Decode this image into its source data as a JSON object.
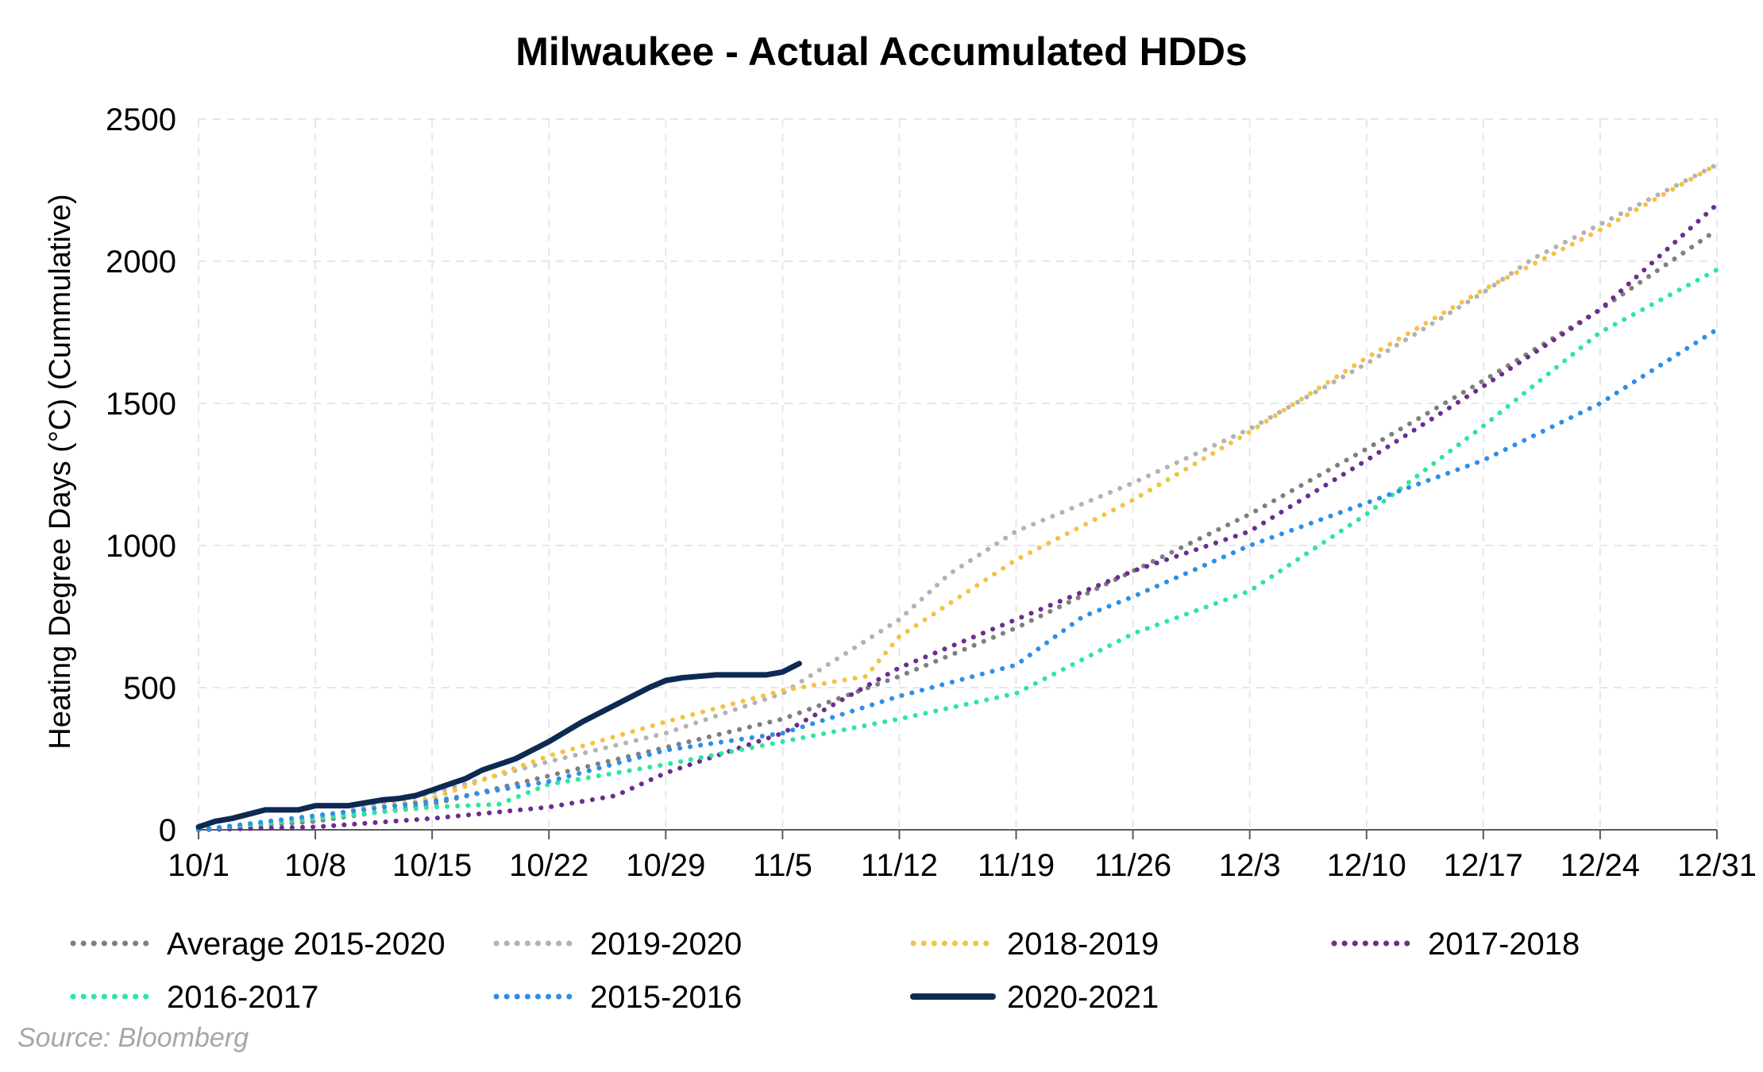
{
  "chart_data": {
    "type": "line",
    "title": "Milwaukee - Actual Accumulated HDDs",
    "ylabel": "Heating Degree Days (°C) (Cummulative)",
    "xlabel": "",
    "ylim": [
      0,
      2500
    ],
    "yticks": [
      0,
      500,
      1000,
      1500,
      2000,
      2500
    ],
    "x_tick_labels": [
      "10/1",
      "10/8",
      "10/15",
      "10/22",
      "10/29",
      "11/5",
      "11/12",
      "11/19",
      "11/26",
      "12/3",
      "12/10",
      "12/17",
      "12/24",
      "12/31"
    ],
    "x_range_days": [
      0,
      91
    ],
    "grid": true,
    "legend_position": "bottom",
    "series": [
      {
        "name": "Average 2015-2020",
        "style": "dotted",
        "color": "#7f7f7f",
        "points": [
          [
            0,
            0
          ],
          [
            7,
            30
          ],
          [
            14,
            90
          ],
          [
            21,
            190
          ],
          [
            28,
            290
          ],
          [
            35,
            390
          ],
          [
            42,
            540
          ],
          [
            49,
            710
          ],
          [
            56,
            910
          ],
          [
            63,
            1110
          ],
          [
            70,
            1340
          ],
          [
            77,
            1580
          ],
          [
            84,
            1830
          ],
          [
            91,
            2110
          ]
        ]
      },
      {
        "name": "2019-2020",
        "style": "dotted",
        "color": "#b3b3b3",
        "points": [
          [
            0,
            0
          ],
          [
            7,
            40
          ],
          [
            14,
            130
          ],
          [
            21,
            240
          ],
          [
            28,
            340
          ],
          [
            35,
            480
          ],
          [
            42,
            740
          ],
          [
            45,
            900
          ],
          [
            49,
            1050
          ],
          [
            56,
            1220
          ],
          [
            63,
            1410
          ],
          [
            70,
            1640
          ],
          [
            77,
            1890
          ],
          [
            80,
            2010
          ],
          [
            84,
            2130
          ],
          [
            91,
            2340
          ]
        ]
      },
      {
        "name": "2018-2019",
        "style": "dotted",
        "color": "#f5c242",
        "points": [
          [
            0,
            0
          ],
          [
            7,
            40
          ],
          [
            14,
            110
          ],
          [
            21,
            260
          ],
          [
            28,
            380
          ],
          [
            35,
            490
          ],
          [
            40,
            540
          ],
          [
            42,
            680
          ],
          [
            49,
            950
          ],
          [
            56,
            1160
          ],
          [
            63,
            1400
          ],
          [
            70,
            1660
          ],
          [
            77,
            1900
          ],
          [
            84,
            2110
          ],
          [
            91,
            2340
          ]
        ]
      },
      {
        "name": "2017-2018",
        "style": "dotted",
        "color": "#6c2c91",
        "points": [
          [
            0,
            0
          ],
          [
            7,
            10
          ],
          [
            14,
            40
          ],
          [
            21,
            80
          ],
          [
            25,
            120
          ],
          [
            28,
            200
          ],
          [
            35,
            340
          ],
          [
            42,
            570
          ],
          [
            49,
            740
          ],
          [
            56,
            910
          ],
          [
            63,
            1050
          ],
          [
            70,
            1300
          ],
          [
            77,
            1560
          ],
          [
            84,
            1830
          ],
          [
            91,
            2200
          ]
        ]
      },
      {
        "name": "2016-2017",
        "style": "dotted",
        "color": "#2ee6a0",
        "points": [
          [
            0,
            0
          ],
          [
            7,
            40
          ],
          [
            14,
            80
          ],
          [
            18,
            90
          ],
          [
            21,
            160
          ],
          [
            28,
            230
          ],
          [
            35,
            310
          ],
          [
            42,
            390
          ],
          [
            49,
            480
          ],
          [
            56,
            690
          ],
          [
            63,
            840
          ],
          [
            70,
            1110
          ],
          [
            77,
            1420
          ],
          [
            84,
            1750
          ],
          [
            91,
            1970
          ]
        ]
      },
      {
        "name": "2015-2016",
        "style": "dotted",
        "color": "#2e8fe6",
        "points": [
          [
            0,
            0
          ],
          [
            7,
            50
          ],
          [
            14,
            100
          ],
          [
            21,
            170
          ],
          [
            28,
            280
          ],
          [
            35,
            340
          ],
          [
            42,
            470
          ],
          [
            49,
            580
          ],
          [
            53,
            750
          ],
          [
            56,
            820
          ],
          [
            63,
            1000
          ],
          [
            70,
            1150
          ],
          [
            77,
            1300
          ],
          [
            84,
            1500
          ],
          [
            91,
            1760
          ]
        ]
      },
      {
        "name": "2020-2021",
        "style": "solid",
        "color": "#0e2a52",
        "points": [
          [
            0,
            10
          ],
          [
            1,
            30
          ],
          [
            2,
            40
          ],
          [
            3,
            55
          ],
          [
            4,
            70
          ],
          [
            5,
            70
          ],
          [
            6,
            70
          ],
          [
            7,
            85
          ],
          [
            8,
            85
          ],
          [
            9,
            85
          ],
          [
            10,
            95
          ],
          [
            11,
            105
          ],
          [
            12,
            110
          ],
          [
            13,
            120
          ],
          [
            14,
            140
          ],
          [
            15,
            160
          ],
          [
            16,
            180
          ],
          [
            17,
            210
          ],
          [
            18,
            230
          ],
          [
            19,
            250
          ],
          [
            20,
            280
          ],
          [
            21,
            310
          ],
          [
            22,
            345
          ],
          [
            23,
            380
          ],
          [
            24,
            410
          ],
          [
            25,
            440
          ],
          [
            26,
            470
          ],
          [
            27,
            500
          ],
          [
            28,
            525
          ],
          [
            29,
            535
          ],
          [
            30,
            540
          ],
          [
            31,
            545
          ],
          [
            32,
            545
          ],
          [
            33,
            545
          ],
          [
            34,
            545
          ],
          [
            35,
            555
          ],
          [
            36,
            585
          ]
        ]
      }
    ]
  },
  "source": "Source: Bloomberg"
}
